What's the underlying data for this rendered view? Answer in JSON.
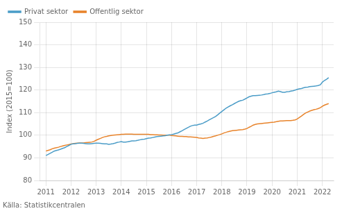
{
  "chart_data": {
    "type": "line",
    "y_label": "Index (2015=100)",
    "source": "Källa: Statistikcentralen",
    "xlim": [
      2010.75,
      2022.45
    ],
    "xticks": [
      2011,
      2012,
      2013,
      2014,
      2015,
      2016,
      2017,
      2018,
      2019,
      2020,
      2021,
      2022
    ],
    "ylim": [
      80,
      150
    ],
    "yticks": [
      80,
      90,
      100,
      110,
      120,
      130,
      140,
      150
    ],
    "grid": true,
    "legend": "upper left",
    "x": [
      2011.0,
      2011.08,
      2011.17,
      2011.25,
      2011.33,
      2011.42,
      2011.5,
      2011.58,
      2011.67,
      2011.75,
      2011.83,
      2011.92,
      2012.0,
      2012.08,
      2012.17,
      2012.25,
      2012.33,
      2012.42,
      2012.5,
      2012.58,
      2012.67,
      2012.75,
      2012.83,
      2012.92,
      2013.0,
      2013.08,
      2013.17,
      2013.25,
      2013.33,
      2013.42,
      2013.5,
      2013.58,
      2013.67,
      2013.75,
      2013.83,
      2013.92,
      2014.0,
      2014.08,
      2014.17,
      2014.25,
      2014.33,
      2014.42,
      2014.5,
      2014.58,
      2014.67,
      2014.75,
      2014.83,
      2014.92,
      2015.0,
      2015.08,
      2015.17,
      2015.25,
      2015.33,
      2015.42,
      2015.5,
      2015.58,
      2015.67,
      2015.75,
      2015.83,
      2015.92,
      2016.0,
      2016.08,
      2016.17,
      2016.25,
      2016.33,
      2016.42,
      2016.5,
      2016.58,
      2016.67,
      2016.75,
      2016.83,
      2016.92,
      2017.0,
      2017.08,
      2017.17,
      2017.25,
      2017.33,
      2017.42,
      2017.5,
      2017.58,
      2017.67,
      2017.75,
      2017.83,
      2017.92,
      2018.0,
      2018.08,
      2018.17,
      2018.25,
      2018.33,
      2018.42,
      2018.5,
      2018.58,
      2018.67,
      2018.75,
      2018.83,
      2018.92,
      2019.0,
      2019.08,
      2019.17,
      2019.25,
      2019.33,
      2019.42,
      2019.5,
      2019.58,
      2019.67,
      2019.75,
      2019.83,
      2019.92,
      2020.0,
      2020.08,
      2020.17,
      2020.25,
      2020.33,
      2020.42,
      2020.5,
      2020.58,
      2020.67,
      2020.75,
      2020.83,
      2020.92,
      2021.0,
      2021.08,
      2021.17,
      2021.25,
      2021.33,
      2021.42,
      2021.5,
      2021.58,
      2021.67,
      2021.75,
      2021.83,
      2021.92,
      2022.0,
      2022.08,
      2022.17,
      2022.25
    ],
    "series": [
      {
        "name": "Privat sektor",
        "color": "#4a9cc7",
        "values": [
          91.0,
          91.5,
          92.0,
          92.5,
          93.0,
          93.3,
          93.5,
          93.8,
          94.2,
          94.5,
          95.0,
          95.5,
          96.0,
          96.2,
          96.3,
          96.4,
          96.5,
          96.5,
          96.4,
          96.3,
          96.2,
          96.2,
          96.3,
          96.4,
          96.5,
          96.5,
          96.4,
          96.3,
          96.2,
          96.2,
          96.0,
          96.1,
          96.3,
          96.5,
          96.8,
          97.0,
          97.2,
          97.0,
          97.0,
          97.1,
          97.3,
          97.5,
          97.5,
          97.6,
          97.8,
          98.0,
          98.2,
          98.3,
          98.5,
          98.7,
          98.8,
          99.0,
          99.2,
          99.4,
          99.5,
          99.6,
          99.7,
          99.8,
          100.0,
          100.2,
          100.3,
          100.5,
          100.8,
          101.0,
          101.5,
          102.0,
          102.5,
          103.0,
          103.5,
          104.0,
          104.3,
          104.5,
          104.5,
          104.8,
          105.0,
          105.3,
          105.8,
          106.3,
          106.8,
          107.3,
          107.8,
          108.3,
          109.0,
          109.8,
          110.5,
          111.2,
          112.0,
          112.5,
          113.0,
          113.5,
          114.0,
          114.5,
          115.0,
          115.3,
          115.5,
          116.0,
          116.5,
          117.0,
          117.3,
          117.5,
          117.5,
          117.6,
          117.7,
          117.8,
          118.0,
          118.2,
          118.3,
          118.5,
          118.8,
          119.0,
          119.2,
          119.5,
          119.3,
          119.0,
          119.0,
          119.2,
          119.3,
          119.5,
          119.7,
          120.0,
          120.3,
          120.5,
          120.7,
          121.0,
          121.2,
          121.3,
          121.5,
          121.6,
          121.7,
          121.8,
          122.0,
          122.3,
          123.5,
          124.2,
          124.8,
          125.5
        ]
      },
      {
        "name": "Offentlig sektor",
        "color": "#e8832a",
        "values": [
          93.0,
          93.3,
          93.6,
          94.0,
          94.3,
          94.5,
          94.7,
          95.0,
          95.3,
          95.5,
          95.7,
          95.9,
          96.1,
          96.3,
          96.4,
          96.5,
          96.6,
          96.6,
          96.6,
          96.7,
          96.8,
          96.9,
          97.0,
          97.3,
          97.8,
          98.2,
          98.6,
          99.0,
          99.3,
          99.5,
          99.7,
          99.9,
          100.0,
          100.1,
          100.2,
          100.3,
          100.4,
          100.4,
          100.5,
          100.5,
          100.5,
          100.5,
          100.4,
          100.4,
          100.4,
          100.4,
          100.4,
          100.4,
          100.4,
          100.4,
          100.3,
          100.3,
          100.2,
          100.2,
          100.1,
          100.1,
          100.0,
          100.0,
          100.0,
          100.0,
          99.9,
          99.8,
          99.7,
          99.6,
          99.5,
          99.5,
          99.4,
          99.4,
          99.3,
          99.3,
          99.2,
          99.1,
          99.0,
          98.8,
          98.7,
          98.6,
          98.7,
          98.8,
          99.0,
          99.2,
          99.5,
          99.7,
          100.0,
          100.3,
          100.6,
          101.0,
          101.3,
          101.6,
          101.8,
          102.0,
          102.1,
          102.2,
          102.3,
          102.4,
          102.5,
          102.7,
          103.0,
          103.5,
          104.0,
          104.5,
          104.8,
          105.0,
          105.1,
          105.2,
          105.3,
          105.4,
          105.5,
          105.6,
          105.7,
          105.8,
          106.0,
          106.2,
          106.3,
          106.3,
          106.4,
          106.5,
          106.5,
          106.5,
          106.6,
          106.8,
          107.2,
          107.8,
          108.5,
          109.2,
          109.8,
          110.3,
          110.7,
          111.0,
          111.3,
          111.5,
          111.8,
          112.2,
          112.8,
          113.3,
          113.7,
          114.0
        ]
      }
    ]
  }
}
